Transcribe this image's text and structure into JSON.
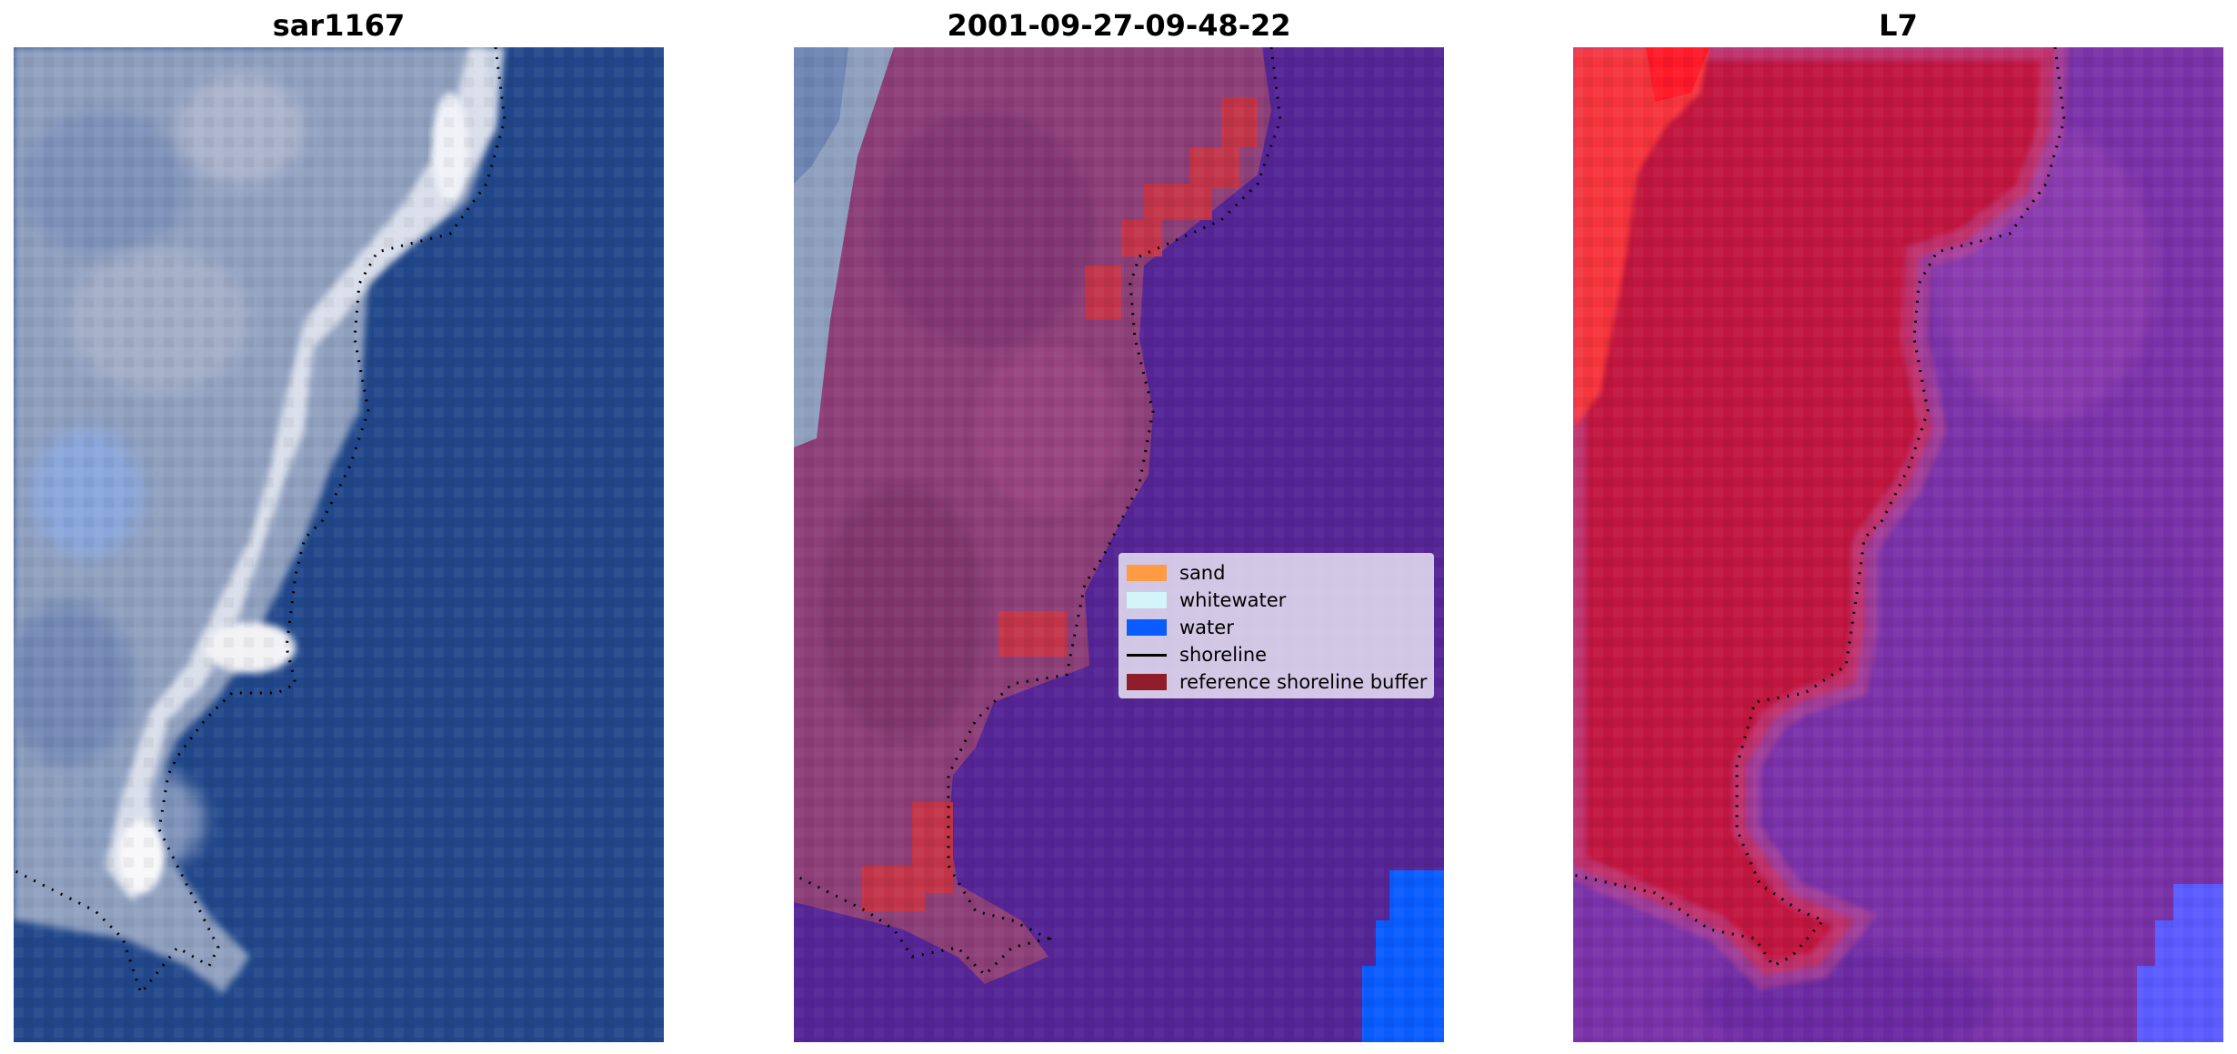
{
  "panels": [
    {
      "title": "sar1167"
    },
    {
      "title": "2001-09-27-09-48-22"
    },
    {
      "title": "L7"
    }
  ],
  "legend": {
    "items": [
      {
        "label": "sand",
        "color": "#ff9a45"
      },
      {
        "label": "whitewater",
        "color": "#d4f5f8"
      },
      {
        "label": "water",
        "color": "#0a5cff"
      },
      {
        "label": "shoreline",
        "color": "#000000"
      },
      {
        "label": "reference shoreline buffer",
        "color": "#8f1e2a"
      }
    ]
  },
  "colors": {
    "rgb_land": "#8e9fbe",
    "rgb_sea": "#1f4a8f",
    "rgb_surf": "#e9eef5",
    "class_land": "#8d3f78",
    "class_water_overlay": "#552596",
    "class_buffer": "#c23549",
    "ndwi_land": "#c8103d",
    "ndwi_water": "#7a32a8",
    "ndwi_strong_water": "#5a5cff",
    "ndwi_red": "#ff3b3b"
  }
}
